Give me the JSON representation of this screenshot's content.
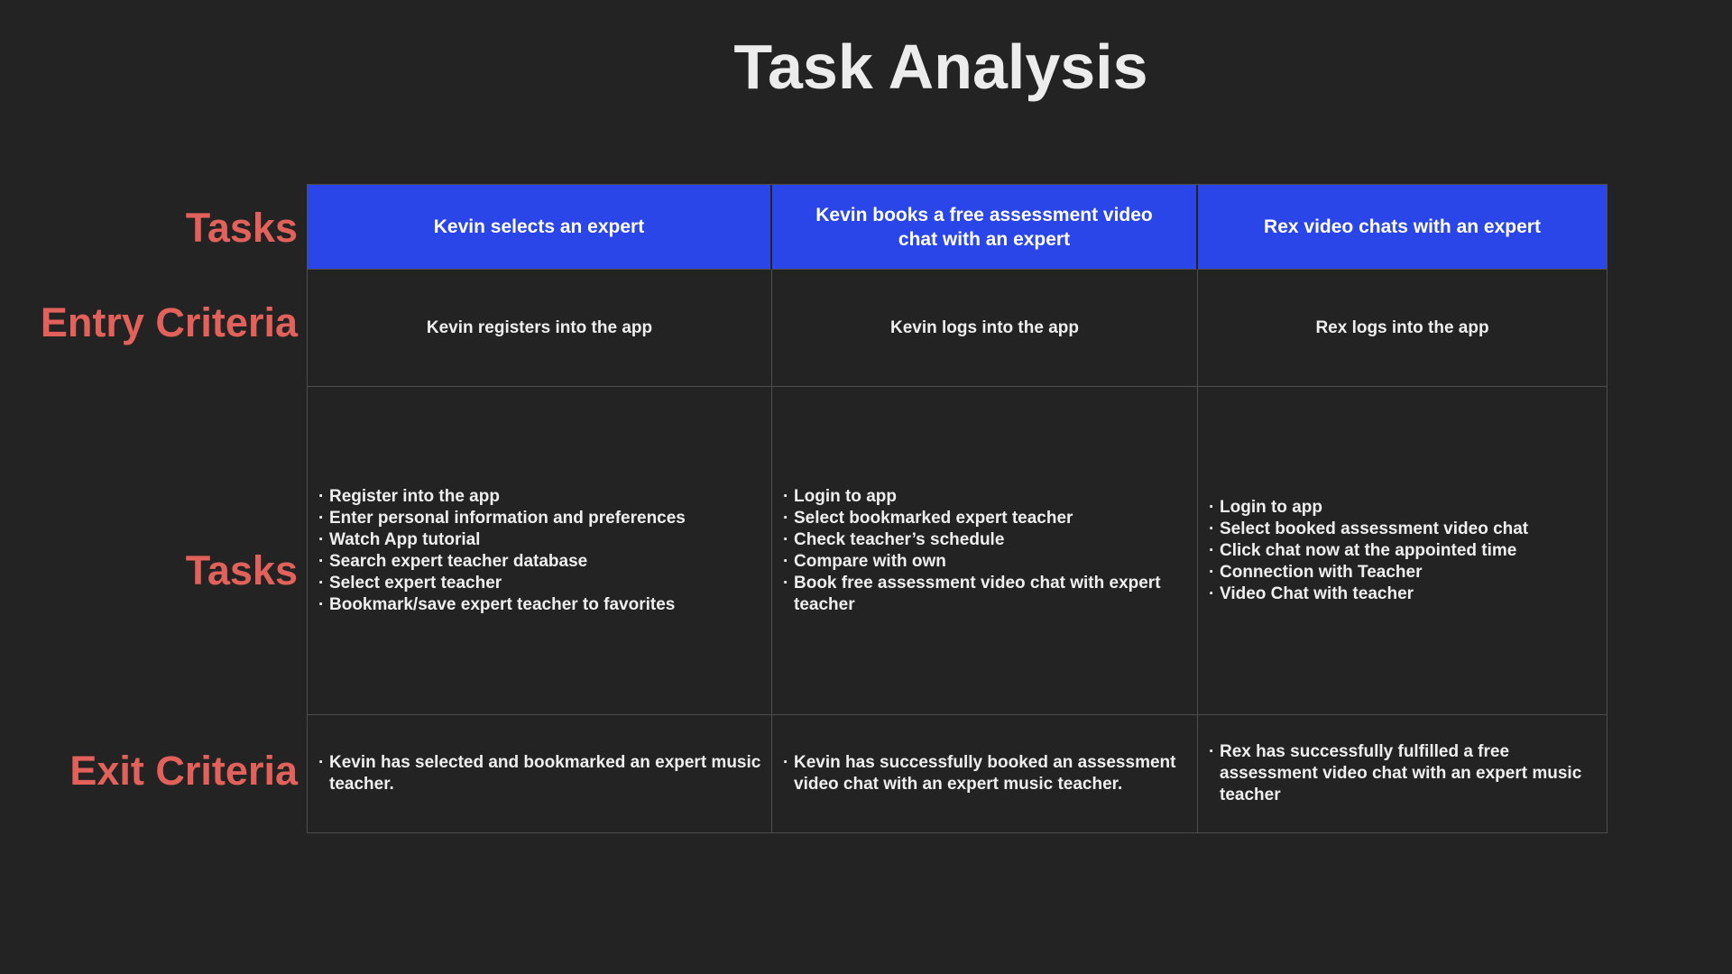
{
  "page": {
    "title": "Task Analysis",
    "colors": {
      "background": "#232323",
      "header_blue": "#2a46e8",
      "label_red": "#e2625b",
      "text": "#efefef",
      "grid_line": "#4e4e4e"
    }
  },
  "row_labels": {
    "tasks_top": "Tasks",
    "entry": "Entry Criteria",
    "tasks_mid": "Tasks",
    "exit": "Exit Criteria"
  },
  "table": {
    "columns": [
      {
        "header": "Kevin selects an expert",
        "entry_criteria": "Kevin registers into the app",
        "tasks": [
          "Register into the app",
          "Enter personal information and preferences",
          "Watch App tutorial",
          "Search expert teacher database",
          "Select expert teacher",
          "Bookmark/save expert teacher to favorites"
        ],
        "exit_criteria": [
          "Kevin has selected and bookmarked an expert music teacher."
        ]
      },
      {
        "header": "Kevin books a free assessment video chat with an expert",
        "entry_criteria": "Kevin logs into the app",
        "tasks": [
          "Login to app",
          "Select bookmarked expert teacher",
          "Check teacher’s schedule",
          "Compare with own",
          "Book free assessment video chat with expert teacher"
        ],
        "exit_criteria": [
          "Kevin has successfully booked an assessment video chat with an expert music teacher."
        ]
      },
      {
        "header": "Rex video chats with an expert",
        "entry_criteria": "Rex logs into the app",
        "tasks": [
          "Login to app",
          "Select booked assessment video chat",
          "Click chat now at the appointed time",
          "Connection with Teacher",
          "Video Chat with teacher"
        ],
        "exit_criteria": [
          "Rex has successfully fulfilled a free assessment video chat with an expert music teacher"
        ]
      }
    ]
  }
}
